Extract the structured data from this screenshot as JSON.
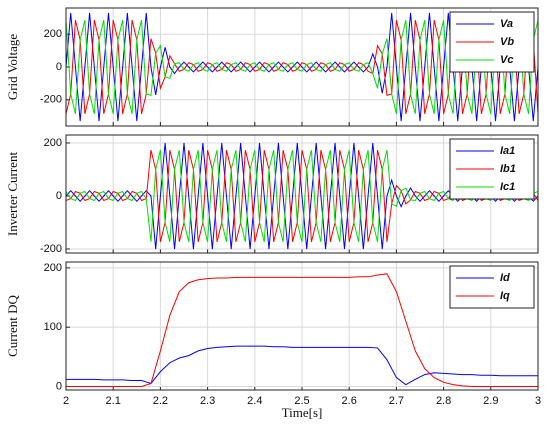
{
  "chart_data": [
    {
      "type": "line",
      "ylabel": "Grid Voltage",
      "x": [
        2,
        2.01,
        2.02,
        2.03,
        2.04,
        2.05,
        2.06,
        2.07,
        2.08,
        2.09,
        2.1,
        2.11,
        2.12,
        2.13,
        2.14,
        2.15,
        2.16,
        2.17,
        2.18,
        2.19,
        2.2,
        2.21,
        2.22,
        2.23,
        2.24,
        2.25,
        2.26,
        2.27,
        2.28,
        2.29,
        2.3,
        2.31,
        2.32,
        2.33,
        2.34,
        2.35,
        2.36,
        2.37,
        2.38,
        2.39,
        2.4,
        2.41,
        2.42,
        2.43,
        2.44,
        2.45,
        2.46,
        2.47,
        2.48,
        2.49,
        2.5,
        2.51,
        2.52,
        2.53,
        2.54,
        2.55,
        2.56,
        2.57,
        2.58,
        2.59,
        2.6,
        2.61,
        2.62,
        2.63,
        2.64,
        2.65,
        2.66,
        2.67,
        2.68,
        2.69,
        2.7,
        2.71,
        2.72,
        2.73,
        2.74,
        2.75,
        2.76,
        2.77,
        2.78,
        2.79,
        2.8,
        2.81,
        2.82,
        2.83,
        2.84,
        2.85,
        2.86,
        2.87,
        2.88,
        2.89,
        2.9,
        2.91,
        2.92,
        2.93,
        2.94,
        2.95,
        2.96,
        2.97,
        2.98,
        2.99,
        3
      ],
      "series": [
        {
          "name": "Va",
          "color": "#0000ff",
          "values": [
            0,
            330,
            0,
            -330,
            0,
            330,
            0,
            -330,
            0,
            330,
            0,
            -330,
            0,
            330,
            0,
            -330,
            0,
            330,
            0,
            -170,
            0,
            120,
            0,
            -40,
            0,
            30,
            0,
            -30,
            0,
            30,
            0,
            -30,
            0,
            30,
            0,
            -30,
            0,
            30,
            0,
            -30,
            0,
            30,
            0,
            -30,
            0,
            30,
            0,
            -30,
            0,
            30,
            0,
            -30,
            0,
            30,
            0,
            -30,
            0,
            30,
            0,
            -30,
            0,
            30,
            0,
            -30,
            0,
            80,
            0,
            -160,
            0,
            330,
            0,
            -330,
            0,
            330,
            0,
            -330,
            0,
            330,
            0,
            -330,
            0,
            330,
            0,
            -330,
            0,
            330,
            0,
            -330,
            0,
            330,
            0,
            -330,
            0,
            330,
            0,
            -330,
            0,
            330,
            0,
            -330,
            0
          ]
        },
        {
          "name": "Vb",
          "color": "#ff0000",
          "values": [
            -286,
            -165,
            286,
            165,
            -286,
            -165,
            286,
            165,
            -286,
            -165,
            286,
            165,
            -286,
            -165,
            286,
            165,
            -286,
            -165,
            173,
            85,
            -130,
            -60,
            69,
            20,
            -26,
            -15,
            26,
            15,
            -26,
            -15,
            26,
            15,
            -26,
            -15,
            26,
            15,
            -26,
            -15,
            26,
            15,
            -26,
            -15,
            26,
            15,
            -26,
            -15,
            26,
            15,
            -26,
            -15,
            26,
            15,
            -26,
            -15,
            26,
            15,
            -26,
            -15,
            26,
            15,
            -26,
            -15,
            26,
            15,
            -26,
            -40,
            130,
            80,
            -173,
            -165,
            286,
            165,
            -286,
            -165,
            286,
            165,
            -286,
            -165,
            286,
            165,
            -286,
            -165,
            286,
            165,
            -286,
            -165,
            286,
            165,
            -286,
            -165,
            286,
            165,
            -286,
            -165,
            286,
            165,
            -286,
            -165,
            286,
            165,
            -286
          ]
        },
        {
          "name": "Vc",
          "color": "#00e000",
          "values": [
            286,
            -165,
            -286,
            165,
            286,
            -165,
            -286,
            165,
            286,
            -165,
            -286,
            165,
            286,
            -165,
            -286,
            165,
            286,
            -165,
            -173,
            85,
            130,
            -60,
            -69,
            20,
            26,
            -15,
            -26,
            15,
            26,
            -15,
            -26,
            15,
            26,
            -15,
            -26,
            15,
            26,
            -15,
            -26,
            15,
            26,
            -15,
            -26,
            15,
            26,
            -15,
            -26,
            15,
            26,
            -15,
            -26,
            15,
            26,
            -15,
            -26,
            15,
            26,
            -15,
            -26,
            15,
            26,
            -15,
            -26,
            15,
            26,
            -40,
            -130,
            80,
            173,
            -165,
            -286,
            165,
            286,
            -165,
            -286,
            165,
            286,
            -165,
            -286,
            165,
            286,
            -165,
            -286,
            165,
            286,
            -165,
            -286,
            165,
            286,
            -165,
            -286,
            165,
            286,
            -165,
            -286,
            165,
            286,
            -165,
            -286,
            165,
            286
          ]
        }
      ],
      "xlim": [
        2,
        3
      ],
      "xticks": [
        2,
        2.1,
        2.2,
        2.3,
        2.4,
        2.5,
        2.6,
        2.7,
        2.8,
        2.9,
        3
      ],
      "ylim": [
        -360,
        360
      ],
      "yticks": [
        -200,
        0,
        200
      ],
      "grid": true,
      "legend": "upper right"
    },
    {
      "type": "line",
      "ylabel": "Inverter Current",
      "x": [
        2,
        2.01,
        2.02,
        2.03,
        2.04,
        2.05,
        2.06,
        2.07,
        2.08,
        2.09,
        2.1,
        2.11,
        2.12,
        2.13,
        2.14,
        2.15,
        2.16,
        2.17,
        2.18,
        2.19,
        2.2,
        2.21,
        2.22,
        2.23,
        2.24,
        2.25,
        2.26,
        2.27,
        2.28,
        2.29,
        2.3,
        2.31,
        2.32,
        2.33,
        2.34,
        2.35,
        2.36,
        2.37,
        2.38,
        2.39,
        2.4,
        2.41,
        2.42,
        2.43,
        2.44,
        2.45,
        2.46,
        2.47,
        2.48,
        2.49,
        2.5,
        2.51,
        2.52,
        2.53,
        2.54,
        2.55,
        2.56,
        2.57,
        2.58,
        2.59,
        2.6,
        2.61,
        2.62,
        2.63,
        2.64,
        2.65,
        2.66,
        2.67,
        2.68,
        2.69,
        2.7,
        2.71,
        2.72,
        2.73,
        2.74,
        2.75,
        2.76,
        2.77,
        2.78,
        2.79,
        2.8,
        2.81,
        2.82,
        2.83,
        2.84,
        2.85,
        2.86,
        2.87,
        2.88,
        2.89,
        2.9,
        2.91,
        2.92,
        2.93,
        2.94,
        2.95,
        2.96,
        2.97,
        2.98,
        2.99,
        3
      ],
      "series": [
        {
          "name": "Ia1",
          "color": "#0000ff",
          "values": [
            0,
            20,
            0,
            -20,
            0,
            20,
            0,
            -20,
            0,
            20,
            0,
            -20,
            0,
            20,
            0,
            -20,
            0,
            20,
            0,
            -200,
            0,
            200,
            0,
            -200,
            0,
            200,
            0,
            -200,
            0,
            200,
            0,
            -200,
            0,
            200,
            0,
            -200,
            0,
            200,
            0,
            -200,
            0,
            200,
            0,
            -200,
            0,
            200,
            0,
            -200,
            0,
            200,
            0,
            -200,
            0,
            200,
            0,
            -200,
            0,
            200,
            0,
            -200,
            0,
            200,
            0,
            -200,
            0,
            200,
            0,
            -200,
            0,
            60,
            0,
            -40,
            0,
            30,
            0,
            -20,
            0,
            20,
            0,
            -20,
            0,
            20,
            0,
            -20,
            0,
            20,
            0,
            -20,
            0,
            20,
            0,
            -20,
            0,
            20,
            0,
            -20,
            0,
            20,
            0,
            -20,
            0
          ]
        },
        {
          "name": "Ib1",
          "color": "#ff0000",
          "values": [
            -17,
            -10,
            17,
            10,
            -17,
            -10,
            17,
            10,
            -17,
            -10,
            17,
            10,
            -17,
            -10,
            17,
            10,
            -17,
            -10,
            173,
            100,
            -173,
            -100,
            173,
            100,
            -173,
            -100,
            173,
            100,
            -173,
            -100,
            173,
            100,
            -173,
            -100,
            173,
            100,
            -173,
            -100,
            173,
            100,
            -173,
            -100,
            173,
            100,
            -173,
            -100,
            173,
            100,
            -173,
            -100,
            173,
            100,
            -173,
            -100,
            173,
            100,
            -173,
            -100,
            173,
            100,
            -173,
            -100,
            173,
            100,
            -173,
            -100,
            173,
            100,
            -173,
            -30,
            39,
            20,
            -30,
            -15,
            17,
            10,
            -17,
            -10,
            17,
            10,
            -17,
            -10,
            17,
            10,
            -17,
            -10,
            17,
            10,
            -17,
            -10,
            17,
            10,
            -17,
            -10,
            17,
            10,
            -17,
            -10,
            17,
            10,
            -17
          ]
        },
        {
          "name": "Ic1",
          "color": "#00e000",
          "values": [
            17,
            -10,
            -17,
            10,
            17,
            -10,
            -17,
            10,
            17,
            -10,
            -17,
            10,
            17,
            -10,
            -17,
            10,
            17,
            -10,
            -173,
            100,
            173,
            -100,
            -173,
            100,
            173,
            -100,
            -173,
            100,
            173,
            -100,
            -173,
            100,
            173,
            -100,
            -173,
            100,
            173,
            -100,
            -173,
            100,
            173,
            -100,
            -173,
            100,
            173,
            -100,
            -173,
            100,
            173,
            -100,
            -173,
            100,
            173,
            -100,
            -173,
            100,
            173,
            -100,
            -173,
            100,
            173,
            -100,
            -173,
            100,
            173,
            -100,
            -173,
            100,
            173,
            -30,
            -39,
            20,
            30,
            -15,
            -17,
            10,
            17,
            -10,
            -17,
            10,
            17,
            -10,
            -17,
            10,
            17,
            -10,
            -17,
            10,
            17,
            -10,
            -17,
            10,
            17,
            -10,
            -17,
            10,
            17,
            -10,
            -17,
            10,
            17
          ]
        }
      ],
      "xlim": [
        2,
        3
      ],
      "xticks": [
        2,
        2.1,
        2.2,
        2.3,
        2.4,
        2.5,
        2.6,
        2.7,
        2.8,
        2.9,
        3
      ],
      "ylim": [
        -215,
        230
      ],
      "yticks": [
        -200,
        0,
        200
      ],
      "grid": true,
      "legend": "upper right"
    },
    {
      "type": "line",
      "ylabel": "Current DQ",
      "xlabel": "Time[s]",
      "x": [
        2,
        2.02,
        2.04,
        2.06,
        2.08,
        2.1,
        2.12,
        2.14,
        2.16,
        2.18,
        2.2,
        2.22,
        2.24,
        2.26,
        2.28,
        2.3,
        2.32,
        2.34,
        2.36,
        2.38,
        2.4,
        2.42,
        2.44,
        2.46,
        2.48,
        2.5,
        2.52,
        2.54,
        2.56,
        2.58,
        2.6,
        2.62,
        2.64,
        2.66,
        2.68,
        2.7,
        2.72,
        2.74,
        2.76,
        2.78,
        2.8,
        2.82,
        2.84,
        2.86,
        2.88,
        2.9,
        2.92,
        2.94,
        2.96,
        2.98,
        3
      ],
      "series": [
        {
          "name": "Id",
          "color": "#0000ff",
          "values": [
            12,
            12,
            12,
            12,
            11,
            11,
            11,
            10,
            10,
            5,
            25,
            40,
            48,
            52,
            60,
            64,
            66,
            67,
            68,
            68,
            68,
            68,
            67,
            67,
            66,
            66,
            66,
            66,
            66,
            66,
            66,
            66,
            66,
            65,
            45,
            15,
            3,
            12,
            20,
            23,
            22,
            21,
            20,
            20,
            19,
            19,
            18,
            18,
            18,
            18,
            18
          ]
        },
        {
          "name": "Iq",
          "color": "#ff0000",
          "values": [
            0,
            0,
            0,
            0,
            0,
            0,
            0,
            0,
            0,
            5,
            60,
            120,
            160,
            175,
            180,
            182,
            183,
            183,
            184,
            184,
            184,
            184,
            184,
            184,
            184,
            184,
            184,
            184,
            184,
            184,
            184,
            185,
            185,
            188,
            190,
            160,
            110,
            60,
            30,
            15,
            7,
            3,
            1,
            0,
            0,
            0,
            0,
            0,
            0,
            0,
            0
          ]
        }
      ],
      "xlim": [
        2,
        3
      ],
      "xticks": [
        2,
        2.1,
        2.2,
        2.3,
        2.4,
        2.5,
        2.6,
        2.7,
        2.8,
        2.9,
        3
      ],
      "ylim": [
        -6,
        210
      ],
      "yticks": [
        0,
        100,
        200
      ],
      "grid": true,
      "legend": "upper right"
    }
  ]
}
